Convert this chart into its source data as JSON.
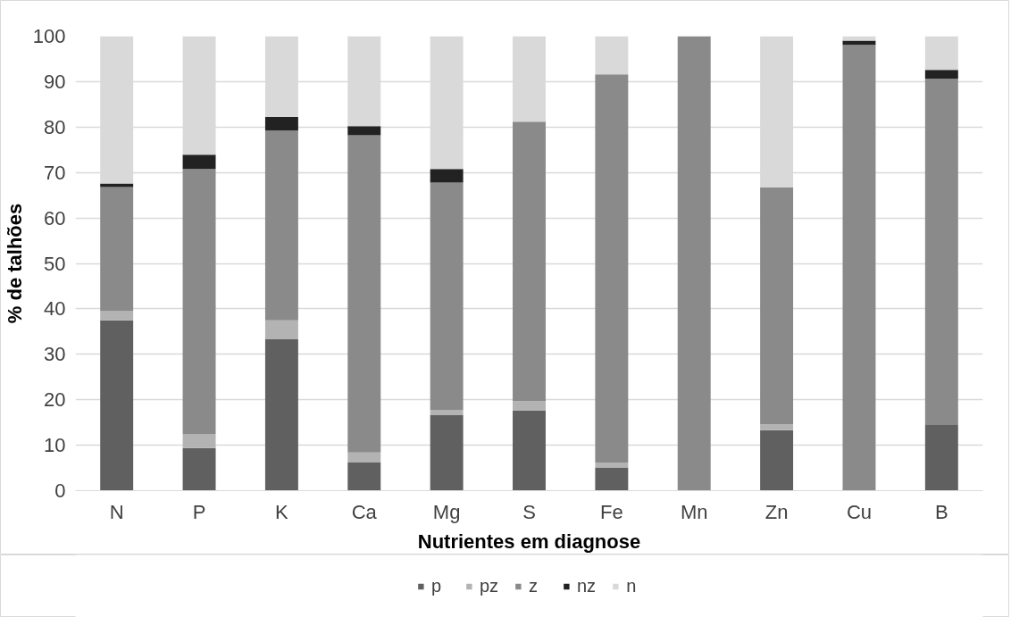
{
  "chart_data": {
    "type": "bar",
    "stacked": true,
    "xlabel": "Nutrientes em diagnose",
    "ylabel": "% de talhões",
    "categories": [
      "N",
      "P",
      "K",
      "Ca",
      "Mg",
      "S",
      "Fe",
      "Mn",
      "Zn",
      "Cu",
      "B"
    ],
    "series": [
      {
        "name": "p",
        "color": "#606060",
        "values": [
          37.5,
          9.4,
          33.3,
          6.2,
          16.7,
          17.6,
          5.1,
          0,
          13.3,
          0,
          14.6
        ]
      },
      {
        "name": "pz",
        "color": "#b3b3b3",
        "values": [
          2.0,
          3.1,
          4.2,
          2.2,
          1.1,
          2.1,
          1.1,
          0,
          1.3,
          0,
          0
        ]
      },
      {
        "name": "z",
        "color": "#8a8a8a",
        "values": [
          27.3,
          58.3,
          41.7,
          69.8,
          50.0,
          61.5,
          85.4,
          100,
          52.1,
          98.1,
          76.0
        ]
      },
      {
        "name": "nz",
        "color": "#222222",
        "values": [
          0.8,
          3.1,
          3.0,
          2.0,
          3.0,
          0,
          0,
          0,
          0,
          0.9,
          2.0
        ]
      },
      {
        "name": "n",
        "color": "#d9d9d9",
        "values": [
          32.4,
          26.1,
          17.8,
          19.8,
          29.2,
          18.8,
          8.4,
          0,
          33.3,
          1.0,
          7.4
        ]
      }
    ],
    "ylim": [
      0,
      100
    ],
    "yticks": [
      0,
      10,
      20,
      30,
      40,
      50,
      60,
      70,
      80,
      90,
      100
    ],
    "grid": "y",
    "legend": "bottom"
  }
}
